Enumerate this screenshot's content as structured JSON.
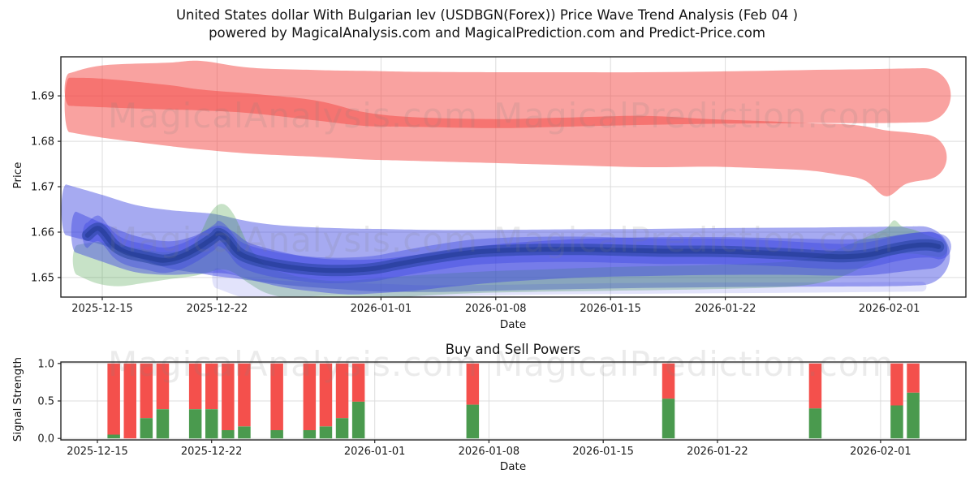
{
  "figure": {
    "title_line1": "United States dollar With Bulgarian lev (USDBGN(Forex)) Price Wave Trend Analysis (Feb 04 )",
    "title_line2": "powered by MagicalAnalysis.com and MagicalPrediction.com and Predict-Price.com",
    "watermarks": [
      "MagicalAnalysis.com",
      "MagicalPrediction.com"
    ],
    "background": "#ffffff",
    "grid_color": "#dcdcdc",
    "frame_color": "#262626",
    "watermark_color": "#808080"
  },
  "chart_data": [
    {
      "type": "area",
      "title": "",
      "ylabel": "Price",
      "xlabel": "Date",
      "grid": true,
      "legend": "none",
      "ylim": [
        1.6457,
        1.6986
      ],
      "yticks": [
        {
          "v": 1.65,
          "label": "1.65"
        },
        {
          "v": 1.66,
          "label": "1.66"
        },
        {
          "v": 1.67,
          "label": "1.67"
        },
        {
          "v": 1.68,
          "label": "1.68"
        },
        {
          "v": 1.69,
          "label": "1.69"
        }
      ],
      "xlim_days": [
        -2.525,
        52.67
      ],
      "xticks": [
        {
          "day": 0,
          "label": "2025-12-15"
        },
        {
          "day": 7,
          "label": "2025-12-22"
        },
        {
          "day": 17,
          "label": "2026-01-01"
        },
        {
          "day": 24,
          "label": "2026-01-08"
        },
        {
          "day": 31,
          "label": "2026-01-15"
        },
        {
          "day": 38,
          "label": "2026-01-22"
        },
        {
          "day": 48,
          "label": "2026-02-01"
        }
      ],
      "bands": [
        {
          "name": "red-band-lower",
          "color": "#f44642",
          "opacity": 0.5,
          "points": [
            [
              -2.0,
              1.682,
              1.694
            ],
            [
              0,
              1.6808,
              1.6938
            ],
            [
              4,
              1.679,
              1.6924
            ],
            [
              6,
              1.6782,
              1.6914
            ],
            [
              9,
              1.6773,
              1.6905
            ],
            [
              13,
              1.6766,
              1.689
            ],
            [
              16,
              1.676,
              1.6864
            ],
            [
              19,
              1.6757,
              1.6853
            ],
            [
              24,
              1.6752,
              1.6849
            ],
            [
              28,
              1.6748,
              1.6852
            ],
            [
              33,
              1.6743,
              1.6856
            ],
            [
              37,
              1.6744,
              1.6849
            ],
            [
              40,
              1.6741,
              1.6845
            ],
            [
              43,
              1.6736,
              1.684
            ],
            [
              45,
              1.6726,
              1.6838
            ],
            [
              46.5,
              1.6714,
              1.6833
            ],
            [
              47.8,
              1.6679,
              1.6824
            ],
            [
              49,
              1.6706,
              1.682
            ],
            [
              50.2,
              1.6715,
              1.6815
            ]
          ]
        },
        {
          "name": "red-band-upper",
          "color": "#f44642",
          "opacity": 0.5,
          "points": [
            [
              -2.0,
              1.6878,
              1.695
            ],
            [
              0,
              1.6875,
              1.6967
            ],
            [
              4,
              1.687,
              1.6973
            ],
            [
              6,
              1.6868,
              1.6977
            ],
            [
              9,
              1.6862,
              1.6962
            ],
            [
              13,
              1.6846,
              1.6957
            ],
            [
              16,
              1.6834,
              1.6955
            ],
            [
              19,
              1.6832,
              1.6953
            ],
            [
              24,
              1.6829,
              1.6952
            ],
            [
              28,
              1.6832,
              1.6952
            ],
            [
              33,
              1.6836,
              1.6952
            ],
            [
              38,
              1.6839,
              1.6954
            ],
            [
              43,
              1.684,
              1.6957
            ],
            [
              47,
              1.684,
              1.6959
            ],
            [
              50.1,
              1.6842,
              1.6961
            ]
          ]
        },
        {
          "name": "blue-band-outer",
          "color": "#3c46e1",
          "opacity": 0.46,
          "points": [
            [
              -2.2,
              1.6593,
              1.6705
            ],
            [
              0,
              1.6572,
              1.6682
            ],
            [
              2,
              1.6546,
              1.666
            ],
            [
              4,
              1.6521,
              1.6649
            ],
            [
              6,
              1.6509,
              1.6643
            ],
            [
              7,
              1.6503,
              1.6639
            ],
            [
              8.6,
              1.6496,
              1.6626
            ],
            [
              10,
              1.6489,
              1.6618
            ],
            [
              12,
              1.6481,
              1.6612
            ],
            [
              15,
              1.6473,
              1.6608
            ],
            [
              17,
              1.6469,
              1.6607
            ],
            [
              20,
              1.6468,
              1.6605
            ],
            [
              24,
              1.6471,
              1.6605
            ],
            [
              28,
              1.6474,
              1.6606
            ],
            [
              33,
              1.6477,
              1.6607
            ],
            [
              38,
              1.6479,
              1.6609
            ],
            [
              43,
              1.648,
              1.661
            ],
            [
              48,
              1.6481,
              1.6612
            ],
            [
              49.9,
              1.6483,
              1.6613
            ]
          ]
        },
        {
          "name": "green-band",
          "color": "#469e44",
          "opacity": 0.3,
          "points": [
            [
              -1.5,
              1.6505,
              1.6572
            ],
            [
              -0.3,
              1.6487,
              1.6578
            ],
            [
              1,
              1.6481,
              1.6572
            ],
            [
              2.5,
              1.6488,
              1.6562
            ],
            [
              4,
              1.6496,
              1.6556
            ],
            [
              5.5,
              1.6503,
              1.657
            ],
            [
              6.6,
              1.6513,
              1.6642
            ],
            [
              7.3,
              1.6518,
              1.6662
            ],
            [
              8,
              1.6511,
              1.664
            ],
            [
              9,
              1.6486,
              1.6566
            ],
            [
              10,
              1.6466,
              1.6526
            ],
            [
              11.5,
              1.6453,
              1.6506
            ],
            [
              13,
              1.6448,
              1.6496
            ],
            [
              14.5,
              1.6451,
              1.6492
            ],
            [
              16,
              1.6453,
              1.6496
            ],
            [
              18,
              1.6456,
              1.6502
            ],
            [
              20,
              1.6461,
              1.6507
            ],
            [
              23,
              1.6466,
              1.6513
            ],
            [
              27,
              1.6469,
              1.6518
            ],
            [
              31,
              1.6471,
              1.6523
            ],
            [
              35,
              1.6473,
              1.6526
            ],
            [
              39,
              1.6476,
              1.653
            ],
            [
              42,
              1.648,
              1.6536
            ],
            [
              44,
              1.649,
              1.655
            ],
            [
              45.5,
              1.6508,
              1.6572
            ],
            [
              46.8,
              1.6532,
              1.6592
            ],
            [
              47.8,
              1.6547,
              1.6608
            ],
            [
              48.3,
              1.6551,
              1.6626
            ],
            [
              48.8,
              1.6553,
              1.6612
            ],
            [
              49.6,
              1.6552,
              1.6604
            ],
            [
              50.4,
              1.6548,
              1.6592
            ],
            [
              51.0,
              1.6545,
              1.6585
            ]
          ]
        },
        {
          "name": "blue-band-wash",
          "color": "#3c46e1",
          "opacity": 0.15,
          "points": [
            [
              7,
              1.6476,
              1.6521
            ],
            [
              8.6,
              1.6456,
              1.6501
            ],
            [
              10,
              1.6453,
              1.6496
            ],
            [
              12,
              1.6456,
              1.6491
            ],
            [
              14,
              1.6461,
              1.6489
            ],
            [
              17,
              1.6459,
              1.6486
            ],
            [
              20,
              1.6458,
              1.6483
            ],
            [
              24,
              1.6461,
              1.6484
            ],
            [
              28,
              1.6463,
              1.6486
            ],
            [
              32,
              1.6464,
              1.6488
            ],
            [
              36,
              1.6465,
              1.6489
            ],
            [
              40,
              1.6466,
              1.6489
            ],
            [
              44,
              1.6467,
              1.6489
            ],
            [
              47,
              1.6468,
              1.649
            ],
            [
              50,
              1.6469,
              1.6491
            ]
          ]
        },
        {
          "name": "blue-band-mid",
          "color": "#3c46e1",
          "opacity": 0.46,
          "points": [
            [
              -1.6,
              1.6555,
              1.6645
            ],
            [
              0,
              1.6535,
              1.662
            ],
            [
              2,
              1.6512,
              1.6592
            ],
            [
              4,
              1.6506,
              1.658
            ],
            [
              5.5,
              1.6508,
              1.659
            ],
            [
              7,
              1.651,
              1.6614
            ],
            [
              8,
              1.6506,
              1.6601
            ],
            [
              9,
              1.6496,
              1.6576
            ],
            [
              11,
              1.6479,
              1.6556
            ],
            [
              13,
              1.6469,
              1.6543
            ],
            [
              15,
              1.6463,
              1.6539
            ],
            [
              17,
              1.6466,
              1.6541
            ],
            [
              19,
              1.6471,
              1.6549
            ],
            [
              21,
              1.6479,
              1.6559
            ],
            [
              24,
              1.6489,
              1.6573
            ],
            [
              27,
              1.6496,
              1.6581
            ],
            [
              30,
              1.6501,
              1.6586
            ],
            [
              34,
              1.6504,
              1.6589
            ],
            [
              38,
              1.6506,
              1.6589
            ],
            [
              42,
              1.6506,
              1.6586
            ],
            [
              45,
              1.6504,
              1.6584
            ],
            [
              47,
              1.6506,
              1.6586
            ],
            [
              49,
              1.6514,
              1.6596
            ],
            [
              50.4,
              1.6519,
              1.6601
            ]
          ]
        }
      ],
      "core_line": {
        "name": "price-core-line",
        "band_color": "#3c46e1",
        "band_opacity": 0.4,
        "band_halfwidth": 0.0028,
        "halo_color": "#19378f",
        "halo_opacity": 0.45,
        "halo_width": 14,
        "color": "#122c78",
        "opacity": 0.38,
        "width": 6,
        "points": [
          [
            -0.9,
            1.6593
          ],
          [
            -0.2,
            1.6608
          ],
          [
            0.7,
            1.6572
          ],
          [
            1.5,
            1.6555
          ],
          [
            2.7,
            1.6545
          ],
          [
            3.7,
            1.6538
          ],
          [
            4.7,
            1.6545
          ],
          [
            5.7,
            1.6562
          ],
          [
            6.8,
            1.6588
          ],
          [
            7.1,
            1.6597
          ],
          [
            7.6,
            1.6585
          ],
          [
            8.3,
            1.6555
          ],
          [
            9.2,
            1.654
          ],
          [
            10.6,
            1.6528
          ],
          [
            12.1,
            1.652
          ],
          [
            13.6,
            1.6516
          ],
          [
            15.1,
            1.6516
          ],
          [
            16.6,
            1.652
          ],
          [
            17.8,
            1.6528
          ],
          [
            19.3,
            1.6538
          ],
          [
            21,
            1.6548
          ],
          [
            22.7,
            1.6556
          ],
          [
            24.7,
            1.656
          ],
          [
            27,
            1.6562
          ],
          [
            29.4,
            1.6562
          ],
          [
            31.9,
            1.656
          ],
          [
            34.3,
            1.6558
          ],
          [
            36.8,
            1.6558
          ],
          [
            39.2,
            1.6556
          ],
          [
            41.7,
            1.6552
          ],
          [
            43.7,
            1.6548
          ],
          [
            45.2,
            1.6546
          ],
          [
            46.7,
            1.655
          ],
          [
            48.2,
            1.6562
          ],
          [
            49.4,
            1.657
          ],
          [
            50.4,
            1.6572
          ],
          [
            51.0,
            1.6568
          ]
        ]
      }
    },
    {
      "type": "bar",
      "title": "Buy and Sell Powers",
      "ylabel": "Signal Strength",
      "xlabel": "Date",
      "grid": true,
      "legend": "none",
      "stacked": true,
      "ylim": [
        -0.02,
        1.02
      ],
      "yticks": [
        {
          "v": 0.0,
          "label": "0.0"
        },
        {
          "v": 0.5,
          "label": "0.5"
        },
        {
          "v": 1.0,
          "label": "1.0"
        }
      ],
      "xlim_days": [
        -2.24,
        53.23
      ],
      "epoch": "2025-12-15",
      "xticks": [
        {
          "day": 0,
          "label": "2025-12-15"
        },
        {
          "day": 7,
          "label": "2025-12-22"
        },
        {
          "day": 17,
          "label": "2026-01-01"
        },
        {
          "day": 24,
          "label": "2026-01-08"
        },
        {
          "day": 31,
          "label": "2026-01-15"
        },
        {
          "day": 38,
          "label": "2026-01-22"
        },
        {
          "day": 48,
          "label": "2026-02-01"
        }
      ],
      "bar_width_days": 0.77,
      "buy_color": "#4a9a4e",
      "sell_color": "#f4504c",
      "bars": [
        {
          "date": "2025-12-16",
          "buy": 0.05,
          "sell": 0.95
        },
        {
          "date": "2025-12-17",
          "buy": 0.0,
          "sell": 1.0
        },
        {
          "date": "2025-12-18",
          "buy": 0.27,
          "sell": 0.73
        },
        {
          "date": "2025-12-19",
          "buy": 0.39,
          "sell": 0.61
        },
        {
          "date": "2025-12-21",
          "buy": 0.39,
          "sell": 0.61
        },
        {
          "date": "2025-12-22",
          "buy": 0.39,
          "sell": 0.61
        },
        {
          "date": "2025-12-23",
          "buy": 0.11,
          "sell": 0.89
        },
        {
          "date": "2025-12-24",
          "buy": 0.16,
          "sell": 0.84
        },
        {
          "date": "2025-12-26",
          "buy": 0.11,
          "sell": 0.89
        },
        {
          "date": "2025-12-28",
          "buy": 0.11,
          "sell": 0.89
        },
        {
          "date": "2025-12-29",
          "buy": 0.16,
          "sell": 0.84
        },
        {
          "date": "2025-12-30",
          "buy": 0.27,
          "sell": 0.73
        },
        {
          "date": "2025-12-31",
          "buy": 0.49,
          "sell": 0.51
        },
        {
          "date": "2026-01-07",
          "buy": 0.45,
          "sell": 0.55
        },
        {
          "date": "2026-01-19",
          "buy": 0.53,
          "sell": 0.47
        },
        {
          "date": "2026-01-28",
          "buy": 0.4,
          "sell": 0.6
        },
        {
          "date": "2026-02-02",
          "buy": 0.44,
          "sell": 0.56
        },
        {
          "date": "2026-02-03",
          "buy": 0.61,
          "sell": 0.39
        }
      ]
    }
  ]
}
